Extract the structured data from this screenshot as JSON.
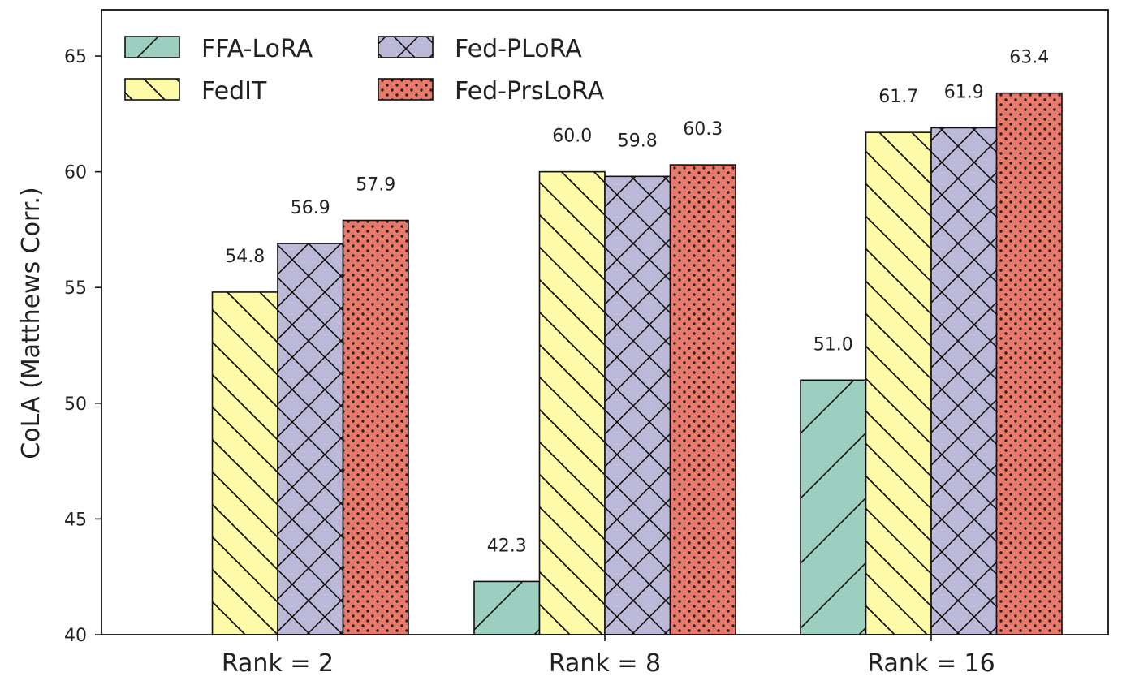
{
  "chart_data": {
    "type": "bar",
    "title": "",
    "xlabel": "",
    "ylabel": "CoLA (Matthews Corr.)",
    "ylim": [
      40,
      67
    ],
    "yticks": [
      40,
      45,
      50,
      55,
      60,
      65
    ],
    "categories": [
      "Rank = 2",
      "Rank = 8",
      "Rank = 16"
    ],
    "series": [
      {
        "name": "FFA-LoRA",
        "values": [
          null,
          42.3,
          51.0
        ],
        "labels": [
          "",
          "42.3",
          "51.0"
        ],
        "color": "#9ccfc0",
        "hatch": "forward-diagonal"
      },
      {
        "name": "FedIT",
        "values": [
          54.8,
          60.0,
          61.7
        ],
        "labels": [
          "54.8",
          "60.0",
          "61.7"
        ],
        "color": "#fdfaa8",
        "hatch": "back-diagonal"
      },
      {
        "name": "Fed-PLoRA",
        "values": [
          56.9,
          59.8,
          61.9
        ],
        "labels": [
          "56.9",
          "59.8",
          "61.9"
        ],
        "color": "#bcb8d8",
        "hatch": "crosshatch"
      },
      {
        "name": "Fed-PrsLoRA",
        "values": [
          57.9,
          60.3,
          63.4
        ],
        "labels": [
          "57.9",
          "60.3",
          "63.4"
        ],
        "color": "#e8796b",
        "hatch": "dots"
      }
    ],
    "legend_position": "top-left",
    "grid": false
  }
}
